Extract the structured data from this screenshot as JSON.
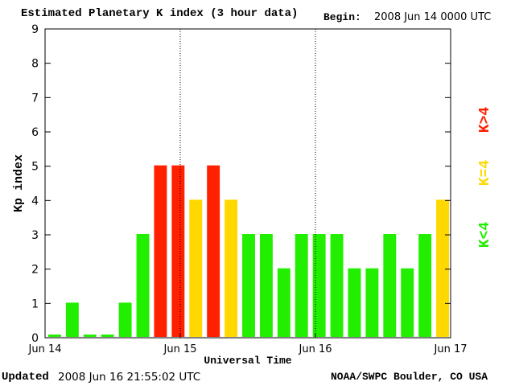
{
  "header": {
    "title": "Estimated Planetary K index (3 hour data)",
    "begin_label": "Begin:",
    "begin_value": "2008 Jun 14 0000 UTC"
  },
  "footer": {
    "updated_label": "Updated",
    "updated_value": "2008 Jun 16 21:55:02 UTC",
    "credit": "NOAA/SWPC Boulder, CO USA"
  },
  "legend": {
    "high": {
      "label": "K>4",
      "color": "#ff2000"
    },
    "mid": {
      "label": "K=4",
      "color": "#ffd800"
    },
    "low": {
      "label": "K<4",
      "color": "#22ee00"
    }
  },
  "chart_data": {
    "type": "bar",
    "title": "Estimated Planetary K index (3 hour data)",
    "ylabel": "Kp index",
    "xlabel": "Universal Time",
    "ylim": [
      0,
      9
    ],
    "yticks": [
      "0",
      "1",
      "2",
      "3",
      "4",
      "5",
      "6",
      "7",
      "8",
      "9"
    ],
    "xlim": [
      0,
      72
    ],
    "xtick_labels": [
      "Jun 14",
      "Jun 15",
      "Jun 16",
      "Jun 17"
    ],
    "day_dividers_hours": [
      24,
      48
    ],
    "bar_interval_hours": 3,
    "values": [
      0,
      1,
      0,
      0,
      1,
      3,
      5,
      5,
      4,
      5,
      4,
      3,
      3,
      2,
      3,
      3,
      3,
      2,
      2,
      3,
      2,
      3,
      4
    ]
  }
}
